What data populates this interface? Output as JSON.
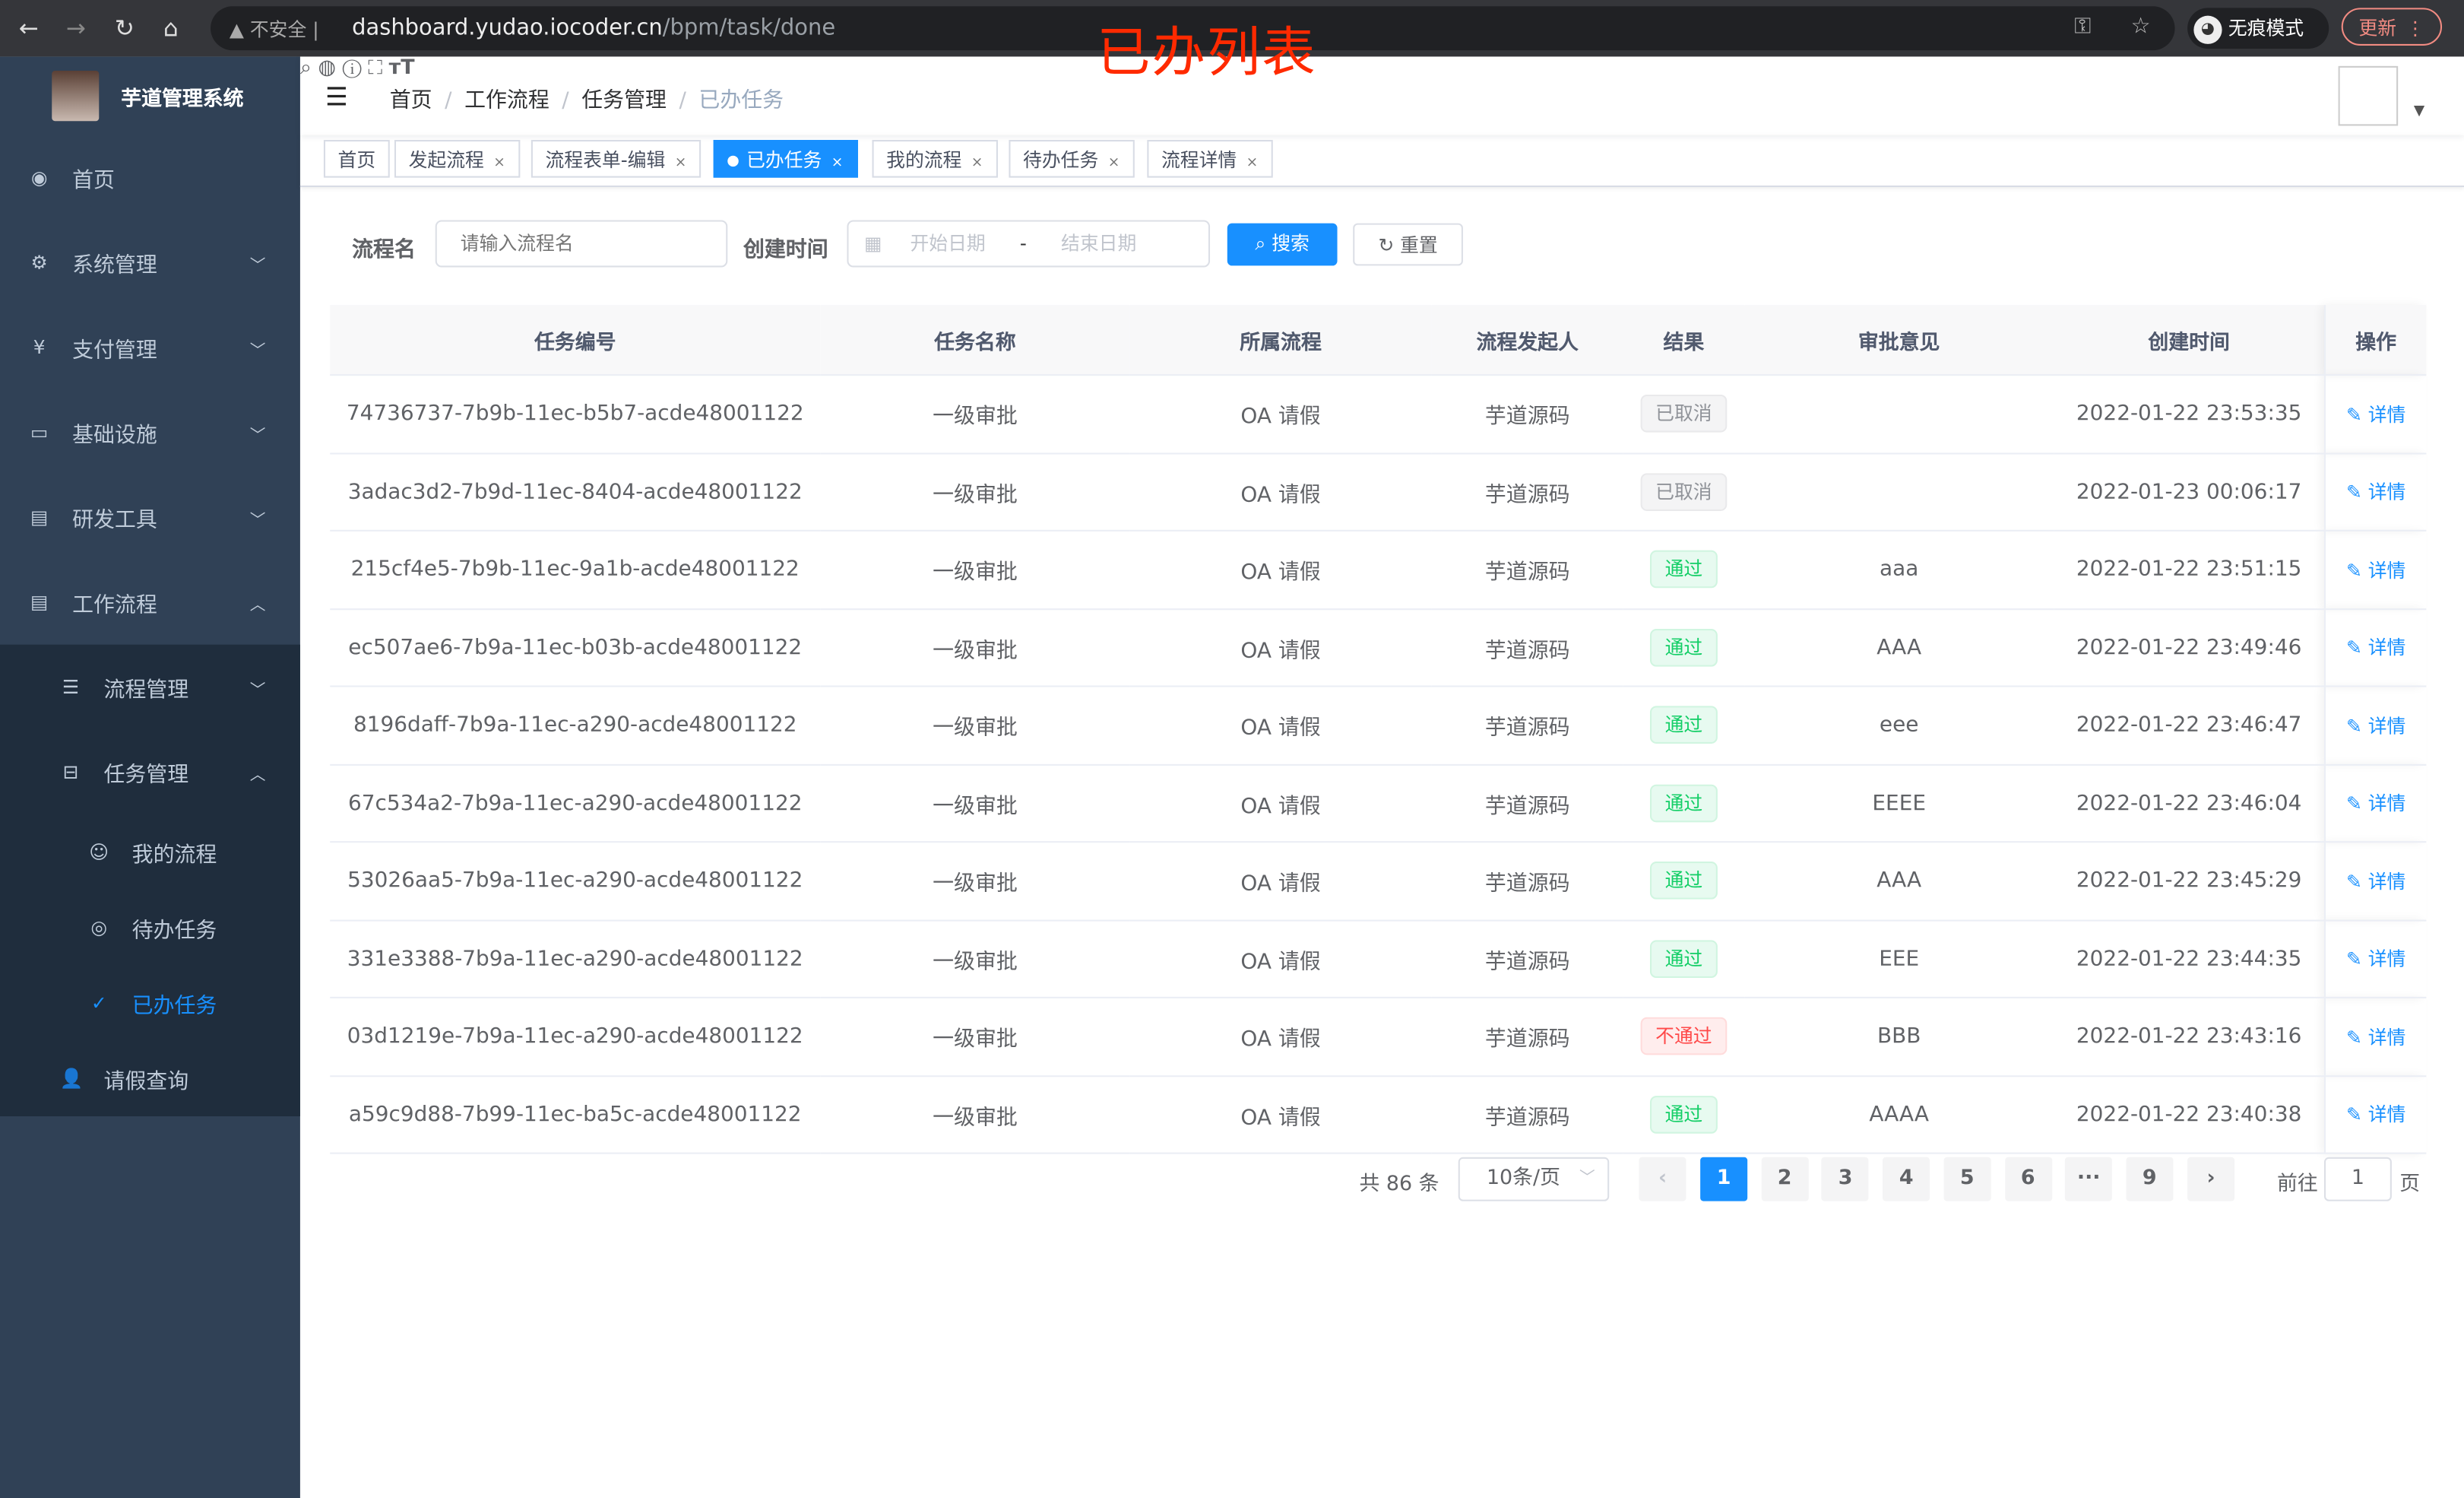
{
  "browser": {
    "not_secure": "不安全",
    "url_host": "dashboard.yudao.iocoder.cn",
    "url_path": "/bpm/task/done",
    "incognito": "无痕模式",
    "update": "更新"
  },
  "annotation": "已办列表",
  "app": {
    "title": "芋道管理系统"
  },
  "sidebar": {
    "items": [
      {
        "label": "首页",
        "icon": "dashboard-icon"
      },
      {
        "label": "系统管理",
        "icon": "gear-icon"
      },
      {
        "label": "支付管理",
        "icon": "yen-icon"
      },
      {
        "label": "基础设施",
        "icon": "monitor-icon"
      },
      {
        "label": "研发工具",
        "icon": "toolbox-icon"
      },
      {
        "label": "工作流程",
        "icon": "toolbox-icon"
      }
    ],
    "workflow_children": [
      {
        "label": "流程管理"
      },
      {
        "label": "任务管理"
      }
    ],
    "task_children": [
      {
        "label": "我的流程"
      },
      {
        "label": "待办任务"
      },
      {
        "label": "已办任务"
      }
    ],
    "leave": {
      "label": "请假查询"
    }
  },
  "breadcrumb": [
    "首页",
    "工作流程",
    "任务管理",
    "已办任务"
  ],
  "tags": [
    {
      "label": "首页"
    },
    {
      "label": "发起流程"
    },
    {
      "label": "流程表单-编辑"
    },
    {
      "label": "已办任务",
      "active": true
    },
    {
      "label": "我的流程"
    },
    {
      "label": "待办任务"
    },
    {
      "label": "流程详情"
    }
  ],
  "filter": {
    "name_label": "流程名",
    "name_placeholder": "请输入流程名",
    "time_label": "创建时间",
    "start_placeholder": "开始日期",
    "sep": "-",
    "end_placeholder": "结束日期",
    "search": "搜索",
    "reset": "重置"
  },
  "table": {
    "headers": [
      "任务编号",
      "任务名称",
      "所属流程",
      "流程发起人",
      "结果",
      "审批意见",
      "创建时间",
      "操作"
    ],
    "rows": [
      [
        "74736737-7b9b-11ec-b5b7-acde48001122",
        "一级审批",
        "OA 请假",
        "芋道源码",
        "已取消",
        "",
        "2022-01-22 23:53:35",
        "详情"
      ],
      [
        "3adac3d2-7b9d-11ec-8404-acde48001122",
        "一级审批",
        "OA 请假",
        "芋道源码",
        "已取消",
        "",
        "2022-01-23 00:06:17",
        "详情"
      ],
      [
        "215cf4e5-7b9b-11ec-9a1b-acde48001122",
        "一级审批",
        "OA 请假",
        "芋道源码",
        "通过",
        "aaa",
        "2022-01-22 23:51:15",
        "详情"
      ],
      [
        "ec507ae6-7b9a-11ec-b03b-acde48001122",
        "一级审批",
        "OA 请假",
        "芋道源码",
        "通过",
        "AAA",
        "2022-01-22 23:49:46",
        "详情"
      ],
      [
        "8196daff-7b9a-11ec-a290-acde48001122",
        "一级审批",
        "OA 请假",
        "芋道源码",
        "通过",
        "eee",
        "2022-01-22 23:46:47",
        "详情"
      ],
      [
        "67c534a2-7b9a-11ec-a290-acde48001122",
        "一级审批",
        "OA 请假",
        "芋道源码",
        "通过",
        "EEEE",
        "2022-01-22 23:46:04",
        "详情"
      ],
      [
        "53026aa5-7b9a-11ec-a290-acde48001122",
        "一级审批",
        "OA 请假",
        "芋道源码",
        "通过",
        "AAA",
        "2022-01-22 23:45:29",
        "详情"
      ],
      [
        "331e3388-7b9a-11ec-a290-acde48001122",
        "一级审批",
        "OA 请假",
        "芋道源码",
        "通过",
        "EEE",
        "2022-01-22 23:44:35",
        "详情"
      ],
      [
        "03d1219e-7b9a-11ec-a290-acde48001122",
        "一级审批",
        "OA 请假",
        "芋道源码",
        "不通过",
        "BBB",
        "2022-01-22 23:43:16",
        "详情"
      ],
      [
        "a59c9d88-7b99-11ec-ba5c-acde48001122",
        "一级审批",
        "OA 请假",
        "芋道源码",
        "通过",
        "AAAA",
        "2022-01-22 23:40:38",
        "详情"
      ]
    ]
  },
  "pagination": {
    "total": "共 86 条",
    "page_size": "10条/页",
    "pages": [
      "1",
      "2",
      "3",
      "4",
      "5",
      "6",
      "···",
      "9"
    ],
    "current": "1",
    "goto_label": "前往",
    "goto_value": "1",
    "page_suffix": "页"
  },
  "colors": {
    "accent": "#1890ff",
    "sidebar": "#304156",
    "pass": "#13ce66",
    "fail": "#ff4949",
    "cancel": "#909399"
  }
}
